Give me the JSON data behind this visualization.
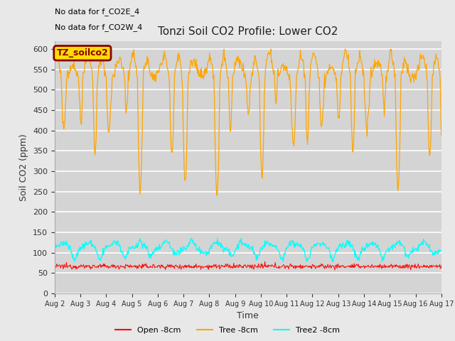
{
  "title": "Tonzi Soil CO2 Profile: Lower CO2",
  "xlabel": "Time",
  "ylabel": "Soil CO2 (ppm)",
  "ylim": [
    0,
    620
  ],
  "yticks": [
    0,
    50,
    100,
    150,
    200,
    250,
    300,
    350,
    400,
    450,
    500,
    550,
    600
  ],
  "annotation_lines": [
    "No data for f_CO2E_4",
    "No data for f_CO2W_4"
  ],
  "legend_label_box": "TZ_soilco2",
  "legend_box_color": "#ffdd00",
  "legend_box_text_color": "#8b0000",
  "series_labels": [
    "Open -8cm",
    "Tree -8cm",
    "Tree2 -8cm"
  ],
  "series_colors": [
    "#ff0000",
    "#ffa500",
    "#00ffff"
  ],
  "bg_color": "#e8e8e8",
  "plot_bg_color": "#d4d4d4",
  "n_days": 15,
  "samples_per_day": 48,
  "start_day": 2,
  "month": "Aug"
}
